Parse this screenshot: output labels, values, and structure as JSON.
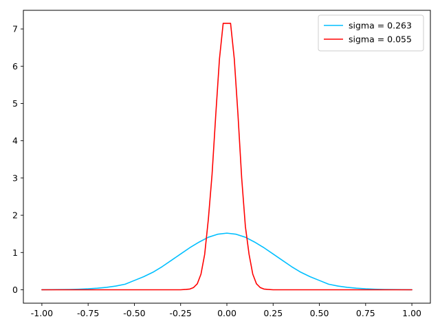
{
  "chart_data": {
    "type": "line",
    "title": "",
    "xlabel": "",
    "ylabel": "",
    "xlim": [
      -1.1,
      1.1
    ],
    "ylim": [
      -0.36,
      7.5
    ],
    "grid": false,
    "legend_position": "top-right",
    "x_ticks": [
      -1.0,
      -0.75,
      -0.5,
      -0.25,
      0.0,
      0.25,
      0.5,
      0.75,
      1.0
    ],
    "x_tick_labels": [
      "-1.00",
      "-0.75",
      "-0.50",
      "-0.25",
      "0.00",
      "0.25",
      "0.50",
      "0.75",
      "1.00"
    ],
    "y_ticks": [
      0,
      1,
      2,
      3,
      4,
      5,
      6,
      7
    ],
    "y_tick_labels": [
      "0",
      "1",
      "2",
      "3",
      "4",
      "5",
      "6",
      "7"
    ],
    "series": [
      {
        "name": "sigma = 0.263",
        "color": "#00bfff",
        "x": [
          -1.0,
          -0.95,
          -0.9,
          -0.85,
          -0.8,
          -0.75,
          -0.7,
          -0.65,
          -0.6,
          -0.55,
          -0.5,
          -0.45,
          -0.4,
          -0.35,
          -0.3,
          -0.25,
          -0.2,
          -0.15,
          -0.1,
          -0.05,
          0.0,
          0.05,
          0.1,
          0.15,
          0.2,
          0.25,
          0.3,
          0.35,
          0.4,
          0.45,
          0.5,
          0.55,
          0.6,
          0.65,
          0.7,
          0.75,
          0.8,
          0.85,
          0.9,
          0.95,
          1.0
        ],
        "y": [
          0.001,
          0.003,
          0.005,
          0.009,
          0.016,
          0.026,
          0.042,
          0.066,
          0.1,
          0.15,
          0.25,
          0.35,
          0.47,
          0.62,
          0.79,
          0.96,
          1.13,
          1.28,
          1.41,
          1.49,
          1.52,
          1.49,
          1.41,
          1.28,
          1.13,
          0.96,
          0.79,
          0.62,
          0.47,
          0.35,
          0.25,
          0.15,
          0.1,
          0.066,
          0.042,
          0.026,
          0.016,
          0.009,
          0.005,
          0.003,
          0.001
        ]
      },
      {
        "name": "sigma = 0.055",
        "color": "#ff0000",
        "x": [
          -1.0,
          -0.3,
          -0.25,
          -0.22,
          -0.2,
          -0.18,
          -0.16,
          -0.14,
          -0.12,
          -0.1,
          -0.08,
          -0.06,
          -0.04,
          -0.02,
          -0.01,
          0.01,
          0.02,
          0.04,
          0.06,
          0.08,
          0.1,
          0.12,
          0.14,
          0.16,
          0.18,
          0.2,
          0.22,
          0.25,
          0.3,
          1.0
        ],
        "y": [
          0.0,
          0.0,
          0.0,
          0.01,
          0.02,
          0.06,
          0.16,
          0.42,
          0.95,
          1.9,
          3.1,
          4.7,
          6.2,
          7.15,
          7.15,
          7.15,
          7.15,
          6.2,
          4.7,
          3.0,
          1.7,
          0.95,
          0.42,
          0.16,
          0.06,
          0.02,
          0.01,
          0.0,
          0.0,
          0.0
        ]
      }
    ]
  }
}
